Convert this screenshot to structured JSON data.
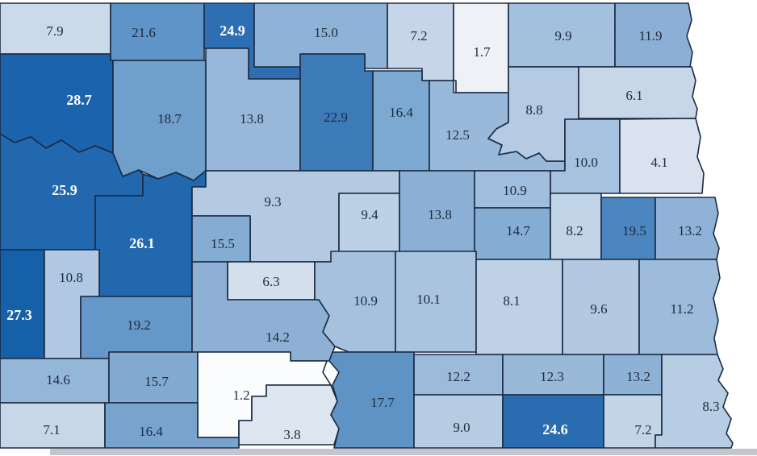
{
  "map": {
    "styles": {
      "border_color": "#1b2a42",
      "dark_label_color": "#1d2a3d",
      "light_label_color": "#ffffff",
      "background": "#ffffff",
      "edge_strip_color": "#c3c7cd"
    },
    "counties": [
      {
        "id": "c01",
        "value": "7.9",
        "fill": "#cbd9e8",
        "text": "dark"
      },
      {
        "id": "c02",
        "value": "21.6",
        "fill": "#5e94c7",
        "text": "dark"
      },
      {
        "id": "c03",
        "value": "24.9",
        "fill": "#2e6eb3",
        "text": "light"
      },
      {
        "id": "c04",
        "value": "15.0",
        "fill": "#8fb3d7",
        "text": "dark"
      },
      {
        "id": "c05",
        "value": "7.2",
        "fill": "#c6d6e8",
        "text": "dark"
      },
      {
        "id": "c06",
        "value": "1.7",
        "fill": "#eef1f6",
        "text": "dark"
      },
      {
        "id": "c07",
        "value": "9.9",
        "fill": "#a3c0de",
        "text": "dark"
      },
      {
        "id": "c08",
        "value": "11.9",
        "fill": "#8cb0d5",
        "text": "dark"
      },
      {
        "id": "c09",
        "value": "28.7",
        "fill": "#1b63ad",
        "text": "light"
      },
      {
        "id": "c10",
        "value": "18.7",
        "fill": "#6f9fcb",
        "text": "dark"
      },
      {
        "id": "c11",
        "value": "13.8",
        "fill": "#97b8da",
        "text": "dark"
      },
      {
        "id": "c12",
        "value": "22.9",
        "fill": "#3c7ab8",
        "text": "dark"
      },
      {
        "id": "c13",
        "value": "16.4",
        "fill": "#7ca9d2",
        "text": "dark"
      },
      {
        "id": "c14",
        "value": "12.5",
        "fill": "#98b9da",
        "text": "dark"
      },
      {
        "id": "c15",
        "value": "8.8",
        "fill": "#b4cbe3",
        "text": "dark"
      },
      {
        "id": "c16",
        "value": "6.1",
        "fill": "#c8d7e8",
        "text": "dark"
      },
      {
        "id": "c17",
        "value": "10.0",
        "fill": "#a6c2df",
        "text": "dark"
      },
      {
        "id": "c18",
        "value": "4.1",
        "fill": "#d9e2ee",
        "text": "dark"
      },
      {
        "id": "c19",
        "value": "25.9",
        "fill": "#2268ae",
        "text": "light"
      },
      {
        "id": "c20",
        "value": "26.1",
        "fill": "#2268ae",
        "text": "light"
      },
      {
        "id": "c21",
        "value": "9.3",
        "fill": "#b3cae2",
        "text": "dark"
      },
      {
        "id": "c22",
        "value": "15.5",
        "fill": "#85add3",
        "text": "dark"
      },
      {
        "id": "c23",
        "value": "6.3",
        "fill": "#d3dfec",
        "text": "dark"
      },
      {
        "id": "c24",
        "value": "9.4",
        "fill": "#bdd1e6",
        "text": "dark"
      },
      {
        "id": "c25",
        "value": "13.8",
        "fill": "#8cb0d5",
        "text": "dark"
      },
      {
        "id": "c26",
        "value": "10.9",
        "fill": "#a0bedd",
        "text": "dark"
      },
      {
        "id": "c27",
        "value": "14.7",
        "fill": "#86aed4",
        "text": "dark"
      },
      {
        "id": "c28",
        "value": "8.2",
        "fill": "#c2d4e7",
        "text": "dark"
      },
      {
        "id": "c29",
        "value": "19.5",
        "fill": "#4c86c0",
        "text": "dark"
      },
      {
        "id": "c30",
        "value": "13.2",
        "fill": "#8fb2d6",
        "text": "dark"
      },
      {
        "id": "c31",
        "value": "27.3",
        "fill": "#1660a9",
        "text": "light"
      },
      {
        "id": "c32",
        "value": "10.8",
        "fill": "#b0c8e1",
        "text": "dark"
      },
      {
        "id": "c33",
        "value": "19.2",
        "fill": "#6598c8",
        "text": "dark"
      },
      {
        "id": "c34",
        "value": "14.2",
        "fill": "#8db0d4",
        "text": "dark"
      },
      {
        "id": "c35",
        "value": "10.9",
        "fill": "#a5c1de",
        "text": "dark"
      },
      {
        "id": "c36",
        "value": "10.1",
        "fill": "#aac4df",
        "text": "dark"
      },
      {
        "id": "c37",
        "value": "8.1",
        "fill": "#bed1e6",
        "text": "dark"
      },
      {
        "id": "c38",
        "value": "9.6",
        "fill": "#b2c9e1",
        "text": "dark"
      },
      {
        "id": "c39",
        "value": "11.2",
        "fill": "#9dbbdb",
        "text": "dark"
      },
      {
        "id": "c40",
        "value": "14.6",
        "fill": "#94b6d8",
        "text": "dark"
      },
      {
        "id": "c41",
        "value": "15.7",
        "fill": "#82aad1",
        "text": "dark"
      },
      {
        "id": "c42",
        "value": "1.2",
        "fill": "#fbfcfe",
        "text": "dark"
      },
      {
        "id": "c43",
        "value": "3.8",
        "fill": "#dde6f0",
        "text": "dark"
      },
      {
        "id": "c44",
        "value": "17.7",
        "fill": "#5f93c5",
        "text": "dark"
      },
      {
        "id": "c45",
        "value": "12.2",
        "fill": "#9cbada",
        "text": "dark"
      },
      {
        "id": "c46",
        "value": "9.0",
        "fill": "#b6cce3",
        "text": "dark"
      },
      {
        "id": "c47",
        "value": "12.3",
        "fill": "#99b9d9",
        "text": "dark"
      },
      {
        "id": "c48",
        "value": "24.6",
        "fill": "#2a6cb0",
        "text": "light"
      },
      {
        "id": "c49",
        "value": "13.2",
        "fill": "#8eb1d6",
        "text": "dark"
      },
      {
        "id": "c50",
        "value": "7.2",
        "fill": "#c3d4e7",
        "text": "dark"
      },
      {
        "id": "c51",
        "value": "8.3",
        "fill": "#b7cde3",
        "text": "dark"
      },
      {
        "id": "c52",
        "value": "7.1",
        "fill": "#c7d7e8",
        "text": "dark"
      },
      {
        "id": "c53",
        "value": "16.4",
        "fill": "#78a3cd",
        "text": "dark"
      }
    ]
  },
  "chart_data": {
    "type": "heatmap",
    "title": "",
    "values": [
      7.9,
      21.6,
      24.9,
      15.0,
      7.2,
      1.7,
      9.9,
      11.9,
      28.7,
      18.7,
      13.8,
      22.9,
      16.4,
      12.5,
      8.8,
      6.1,
      10.0,
      4.1,
      25.9,
      26.1,
      9.3,
      15.5,
      6.3,
      9.4,
      13.8,
      10.9,
      14.7,
      8.2,
      19.5,
      13.2,
      27.3,
      10.8,
      19.2,
      14.2,
      10.9,
      10.1,
      8.1,
      9.6,
      11.2,
      14.6,
      15.7,
      1.2,
      3.8,
      17.7,
      12.2,
      9.0,
      12.3,
      24.6,
      13.2,
      7.2,
      8.3,
      7.1,
      16.4
    ],
    "value_range": [
      1.2,
      28.7
    ],
    "legend_position": "none",
    "notes": "choropleth of county regions; darker blue = higher value; white labels on darkest counties"
  }
}
